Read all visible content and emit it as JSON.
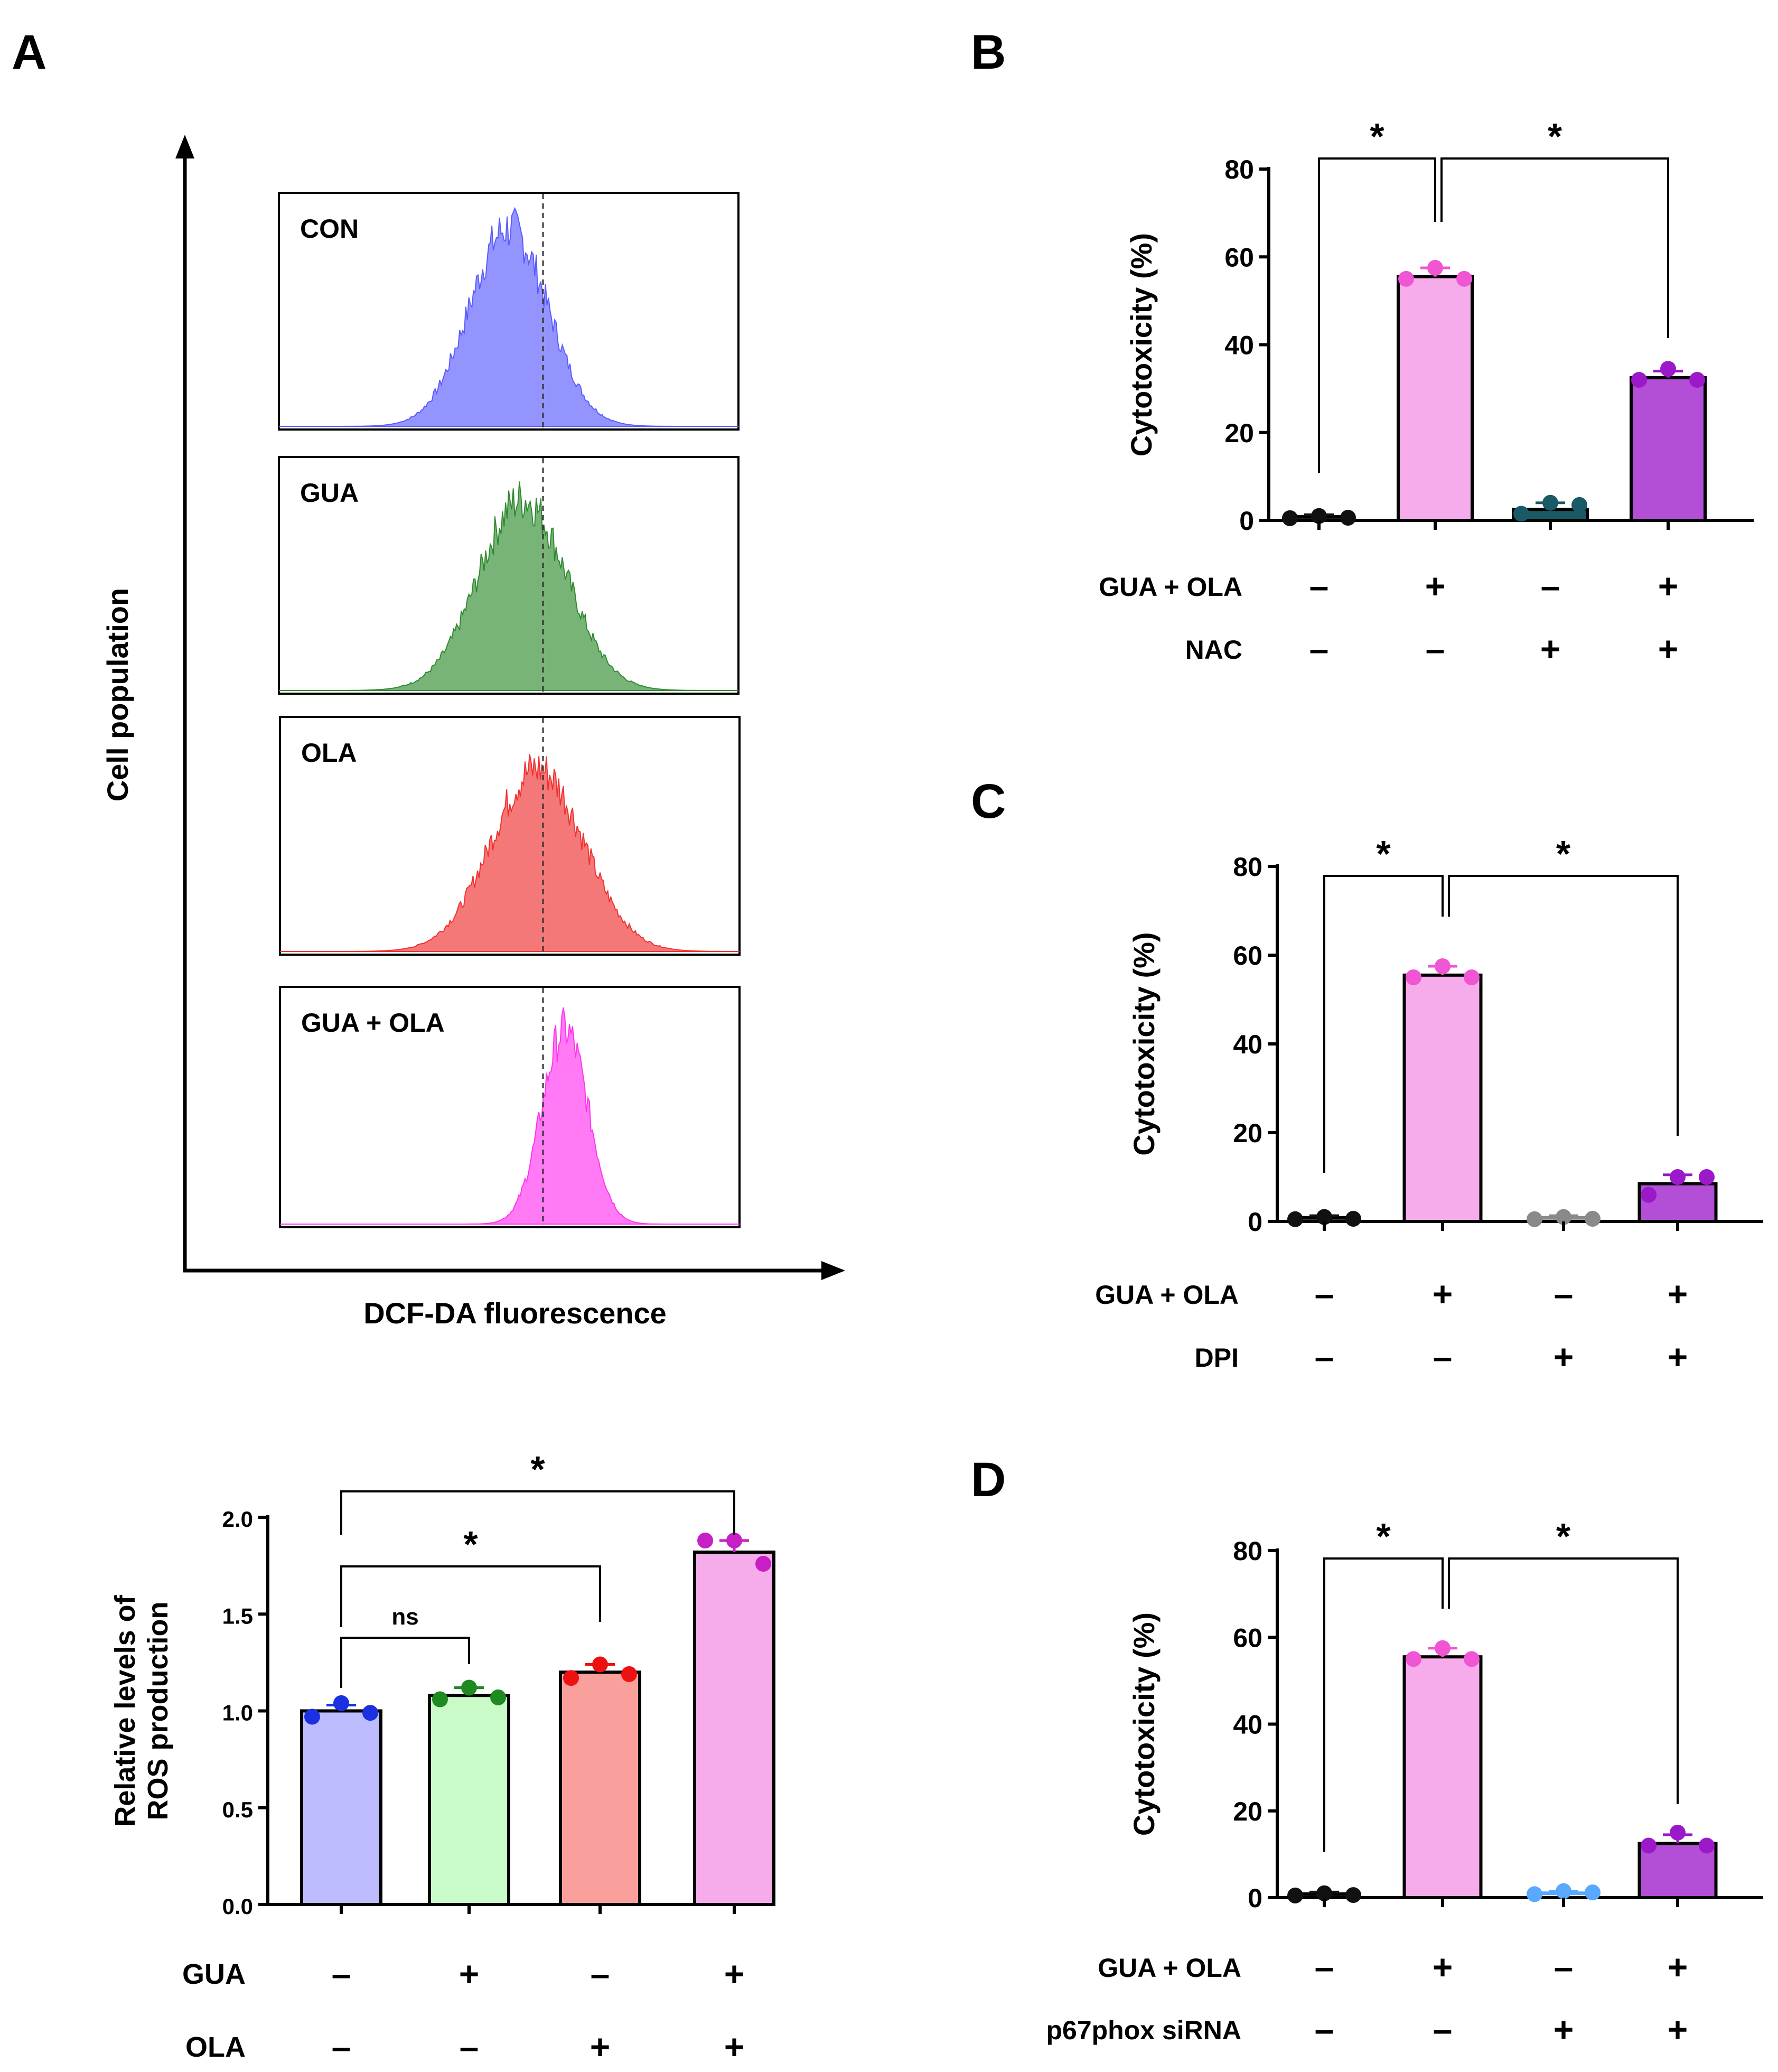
{
  "panel_letters": {
    "a": "A",
    "b": "B",
    "c": "C",
    "d": "D"
  },
  "colors": {
    "con": "#6b6bff",
    "gua": "#3c9a3c",
    "ola": "#f24a4a",
    "gua_ola": "#ff55ee",
    "bar_con": "#bcbcff",
    "bar_gua": "#c9fbc9",
    "bar_ola": "#f9a09c",
    "bar_pink": "#f6acea",
    "bar_purple": "#b24fd6"
  },
  "flow": {
    "ylabel": "Cell population",
    "xlabel": "DCF-DA fluorescence",
    "histograms": [
      {
        "label": "CON",
        "color": "#5a5aff",
        "peak": 0.5,
        "width": 0.085,
        "height": 0.85
      },
      {
        "label": "GUA",
        "color": "#2f8a2f",
        "peak": 0.53,
        "width": 0.095,
        "height": 0.82
      },
      {
        "label": "OLA",
        "color": "#f03030",
        "peak": 0.56,
        "width": 0.1,
        "height": 0.78
      },
      {
        "label": "GUA + OLA",
        "color": "#ff33ee",
        "peak": 0.62,
        "width": 0.05,
        "height": 0.82
      }
    ]
  },
  "chart_data": [
    {
      "id": "A-bottom",
      "type": "bar",
      "ylabel": "Relative levels of ROS production",
      "ylim": [
        0,
        2.0
      ],
      "yticks": [
        "0.0",
        "0.5",
        "1.0",
        "1.5",
        "2.0"
      ],
      "categories": [
        "CON",
        "GUA",
        "OLA",
        "GUA + OLA"
      ],
      "values": [
        1.0,
        1.08,
        1.2,
        1.82
      ],
      "errors": [
        0.03,
        0.04,
        0.04,
        0.06
      ],
      "points": [
        [
          0.97,
          1.04,
          0.99
        ],
        [
          1.06,
          1.12,
          1.07
        ],
        [
          1.17,
          1.24,
          1.19
        ],
        [
          1.88,
          1.88,
          1.76
        ]
      ],
      "bar_colors": [
        "#bcbcff",
        "#c9fbc9",
        "#f9a09c",
        "#f6acea"
      ],
      "point_colors": [
        "#1b30e0",
        "#1f8a1f",
        "#ee1111",
        "#c51fc5"
      ],
      "conditions": [
        {
          "label": "GUA",
          "signs": [
            "–",
            "+",
            "–",
            "+"
          ]
        },
        {
          "label": "OLA",
          "signs": [
            "–",
            "–",
            "+",
            "+"
          ]
        }
      ],
      "significance": [
        {
          "from": 0,
          "to": 1,
          "label": "ns"
        },
        {
          "from": 0,
          "to": 2,
          "label": "*"
        },
        {
          "from": 0,
          "to": 3,
          "label": "*"
        }
      ]
    },
    {
      "id": "B",
      "type": "bar",
      "ylabel": "Cytotoxicity (%)",
      "ylim": [
        0,
        80
      ],
      "yticks": [
        "0",
        "20",
        "40",
        "60",
        "80"
      ],
      "values": [
        0.8,
        55.5,
        2.5,
        32.5
      ],
      "errors": [
        0.5,
        2.0,
        1.5,
        1.5
      ],
      "points": [
        [
          0.5,
          1.0,
          0.6
        ],
        [
          55,
          57.5,
          55
        ],
        [
          1.5,
          4.0,
          3.5
        ],
        [
          32,
          34.5,
          32
        ]
      ],
      "bar_colors": [
        "#000000",
        "#f6acea",
        "#1a5a66",
        "#b24fd6"
      ],
      "point_colors": [
        "#111111",
        "#f055d4",
        "#1a5a66",
        "#9b19c8"
      ],
      "conditions": [
        {
          "label": "GUA + OLA",
          "signs": [
            "–",
            "+",
            "–",
            "+"
          ]
        },
        {
          "label": "NAC",
          "signs": [
            "–",
            "–",
            "+",
            "+"
          ]
        }
      ],
      "significance": [
        {
          "from": 0,
          "to": 1,
          "label": "*"
        },
        {
          "from": 1,
          "to": 3,
          "label": "*"
        }
      ]
    },
    {
      "id": "C",
      "type": "bar",
      "ylabel": "Cytotoxicity (%)",
      "ylim": [
        0,
        80
      ],
      "yticks": [
        "0",
        "20",
        "40",
        "60",
        "80"
      ],
      "values": [
        0.8,
        55.5,
        0.8,
        8.5
      ],
      "errors": [
        0.5,
        2.0,
        0.5,
        2.0
      ],
      "points": [
        [
          0.5,
          1.0,
          0.6
        ],
        [
          55,
          57.5,
          55
        ],
        [
          0.5,
          1.0,
          0.6
        ],
        [
          6,
          10,
          10
        ]
      ],
      "bar_colors": [
        "#000000",
        "#f6acea",
        "#8a8a8a",
        "#b24fd6"
      ],
      "point_colors": [
        "#111111",
        "#f055d4",
        "#8a8a8a",
        "#9b19c8"
      ],
      "conditions": [
        {
          "label": "GUA + OLA",
          "signs": [
            "–",
            "+",
            "–",
            "+"
          ]
        },
        {
          "label": "DPI",
          "signs": [
            "–",
            "–",
            "+",
            "+"
          ]
        }
      ],
      "significance": [
        {
          "from": 0,
          "to": 1,
          "label": "*"
        },
        {
          "from": 1,
          "to": 3,
          "label": "*"
        }
      ]
    },
    {
      "id": "D",
      "type": "bar",
      "ylabel": "Cytotoxicity (%)",
      "ylim": [
        0,
        80
      ],
      "yticks": [
        "0",
        "20",
        "40",
        "60",
        "80"
      ],
      "values": [
        0.8,
        55.5,
        1.0,
        12.5
      ],
      "errors": [
        0.5,
        2.0,
        0.5,
        2.0
      ],
      "points": [
        [
          0.5,
          1.0,
          0.6
        ],
        [
          55,
          57.5,
          55
        ],
        [
          0.8,
          1.5,
          1.2
        ],
        [
          12,
          15,
          12
        ]
      ],
      "bar_colors": [
        "#000000",
        "#f6acea",
        "#5aa8ff",
        "#b24fd6"
      ],
      "point_colors": [
        "#111111",
        "#f055d4",
        "#5aa8ff",
        "#9b19c8"
      ],
      "conditions": [
        {
          "label": "GUA + OLA",
          "signs": [
            "–",
            "+",
            "–",
            "+"
          ]
        },
        {
          "label": "p67phox siRNA",
          "signs": [
            "–",
            "–",
            "+",
            "+"
          ]
        }
      ],
      "significance": [
        {
          "from": 0,
          "to": 1,
          "label": "*"
        },
        {
          "from": 1,
          "to": 3,
          "label": "*"
        }
      ]
    }
  ]
}
